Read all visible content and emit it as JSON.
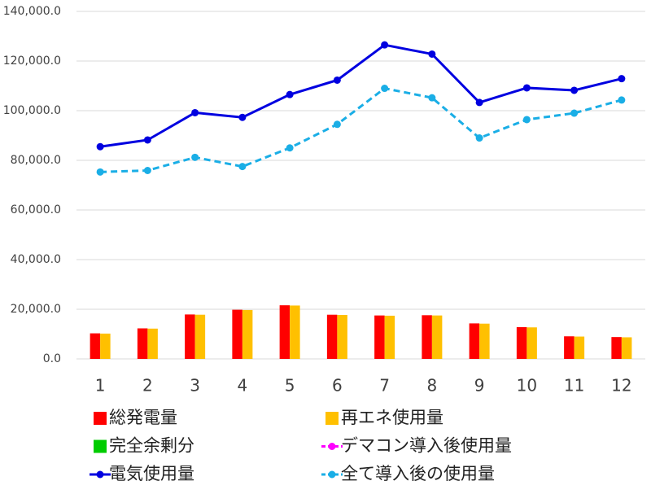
{
  "chart_data": {
    "type": "bar_line",
    "categories": [
      "1",
      "2",
      "3",
      "4",
      "5",
      "6",
      "7",
      "8",
      "9",
      "10",
      "11",
      "12"
    ],
    "ylim": [
      0,
      140000
    ],
    "yticks": [
      {
        "value": 0,
        "label": "0.0"
      },
      {
        "value": 20000,
        "label": "20,000.0"
      },
      {
        "value": 40000,
        "label": "40,000.0"
      },
      {
        "value": 60000,
        "label": "60,000.0"
      },
      {
        "value": 80000,
        "label": "80,000.0"
      },
      {
        "value": 100000,
        "label": "100,000.0"
      },
      {
        "value": 120000,
        "label": "120,000.0"
      },
      {
        "value": 140000,
        "label": "140,000.0"
      }
    ],
    "grid": true,
    "series": [
      {
        "name": "総発電量",
        "type": "bar",
        "color": "#ff0000",
        "values": [
          10300,
          12300,
          17900,
          19800,
          21600,
          17800,
          17500,
          17600,
          14300,
          12800,
          9100,
          8800
        ]
      },
      {
        "name": "再エネ使用量",
        "type": "bar",
        "color": "#ffc000",
        "values": [
          10200,
          12200,
          17800,
          19700,
          21500,
          17700,
          17400,
          17500,
          14200,
          12700,
          9000,
          8700
        ]
      },
      {
        "name": "完全余剰分",
        "type": "bar",
        "color": "#00cc00",
        "values": [
          0,
          0,
          0,
          0,
          0,
          0,
          0,
          0,
          0,
          0,
          0,
          0
        ]
      },
      {
        "name": "デマコン導入後使用量",
        "type": "line",
        "style": "dashed",
        "color": "#ff00ff",
        "values": [
          null,
          null,
          null,
          null,
          null,
          null,
          null,
          null,
          null,
          null,
          null,
          null
        ]
      },
      {
        "name": "電気使用量",
        "type": "line",
        "style": "solid",
        "color": "#0000e0",
        "values": [
          85500,
          88200,
          99200,
          97300,
          106500,
          112300,
          126500,
          122800,
          103300,
          109200,
          108200,
          112900
        ]
      },
      {
        "name": "全て導入後の使用量",
        "type": "line",
        "style": "dashed",
        "color": "#1aaee6",
        "values": [
          75300,
          75900,
          81200,
          77500,
          85000,
          94500,
          109000,
          105200,
          89000,
          96400,
          99000,
          104300
        ]
      }
    ]
  }
}
